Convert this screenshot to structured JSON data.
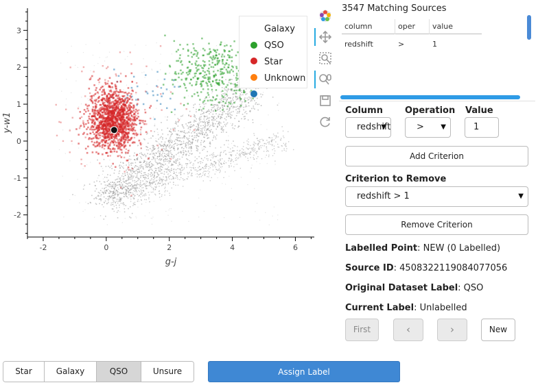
{
  "plot": {
    "xlabel": "g-j",
    "ylabel": "y-w1",
    "x_ticks": [
      "-2",
      "0",
      "2",
      "4",
      "6"
    ],
    "y_ticks": [
      "3",
      "2",
      "1",
      "0",
      "-1",
      "-2"
    ],
    "legend": [
      {
        "label": "Galaxy",
        "color": "#2ca02c"
      },
      {
        "label": "QSO",
        "color": "#d62728"
      },
      {
        "label": "Star",
        "color": "#ff7f0e"
      },
      {
        "label": "Unknown",
        "color": "#1f77b4"
      }
    ],
    "colors": {
      "unlabelled": "#9a9a9a",
      "selected_point": "#111111"
    }
  },
  "chart_data": {
    "type": "scatter",
    "xlabel": "g-j",
    "ylabel": "y-w1",
    "xlim": [
      -2.5,
      6.6
    ],
    "ylim": [
      -2.6,
      3.6
    ],
    "grid": false,
    "legend_position": "top-right",
    "series": [
      {
        "name": "Galaxy",
        "color": "#2ca02c",
        "region": {
          "x": [
            2.2,
            4.8
          ],
          "y": [
            1.0,
            2.8
          ]
        }
      },
      {
        "name": "QSO",
        "color": "#d62728",
        "region": {
          "x": [
            -0.8,
            1.2
          ],
          "y": [
            -0.2,
            1.8
          ]
        }
      },
      {
        "name": "Unknown",
        "color": "#1f77b4",
        "region": {
          "x": [
            0.4,
            2.5
          ],
          "y": [
            1.0,
            1.5
          ]
        }
      }
    ],
    "highlighted_point": {
      "x": 0.25,
      "y": 0.3
    }
  },
  "toolbar": {
    "tools": [
      {
        "name": "bokeh-logo-icon"
      },
      {
        "name": "pan-icon"
      },
      {
        "name": "box-zoom-icon"
      },
      {
        "name": "wheel-zoom-icon"
      },
      {
        "name": "save-icon"
      },
      {
        "name": "reset-icon"
      }
    ]
  },
  "table": {
    "title": "3547 Matching Sources",
    "columns": [
      "column",
      "oper",
      "value"
    ],
    "rows": [
      [
        "redshift",
        ">",
        "1"
      ]
    ]
  },
  "form": {
    "column_label": "Column",
    "operation_label": "Operation",
    "value_label": "Value",
    "column_value": "redshift",
    "operation_value": ">",
    "value_value": "1",
    "add_button": "Add Criterion",
    "remove_label": "Criterion to Remove",
    "remove_value": "redshift > 1",
    "remove_button": "Remove Criterion"
  },
  "info": {
    "labelled_point_key": "Labelled Point",
    "labelled_point_value": ": NEW (0 Labelled)",
    "source_id_key": "Source ID",
    "source_id_value": ": 4508322119084077056",
    "original_label_key": "Original Dataset Label",
    "original_label_value": ": QSO",
    "current_label_key": "Current Label",
    "current_label_value": ": Unlabelled"
  },
  "nav": {
    "first": "First",
    "prev": "‹",
    "next": "›",
    "new": "New"
  },
  "label_buttons": {
    "options": [
      "Star",
      "Galaxy",
      "QSO",
      "Unsure"
    ],
    "selected": "QSO",
    "assign": "Assign Label"
  }
}
